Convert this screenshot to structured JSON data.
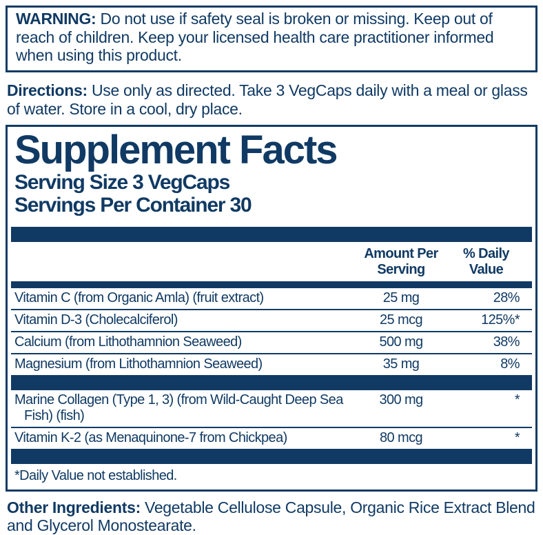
{
  "colors": {
    "navy": "#103a64",
    "background": "#ffffff"
  },
  "warning": {
    "label": "WARNING:",
    "text": "Do not use if safety seal is broken or missing. Keep out of reach of children. Keep your licensed health care practitioner informed when using this product."
  },
  "directions": {
    "label": "Directions:",
    "text": "Use only as directed. Take 3 VegCaps daily with a meal or glass of water. Store in a cool, dry place."
  },
  "supplement_facts": {
    "title": "Supplement Facts",
    "serving_size": "Serving Size 3 VegCaps",
    "servings_per_container": "Servings Per Container 30",
    "columns": {
      "amount": "Amount Per Serving",
      "daily_value": "% Daily Value"
    },
    "rows": [
      {
        "name": "Vitamin C (from Organic Amla) (fruit extract)",
        "amount": "25 mg",
        "dv": "28%"
      },
      {
        "name": "Vitamin D-3 (Cholecalciferol)",
        "amount": "25 mcg",
        "dv": "125%*"
      },
      {
        "name": "Calcium (from Lithothamnion Seaweed)",
        "amount": "500 mg",
        "dv": "38%"
      },
      {
        "name": "Magnesium (from Lithothamnion Seaweed)",
        "amount": "35 mg",
        "dv": "8%",
        "group_end": true
      },
      {
        "name": "Marine Collagen (Type 1, 3) (from Wild-Caught Deep Sea Fish) (fish)",
        "amount": "300 mg",
        "dv": "*"
      },
      {
        "name": "Vitamin K-2 (as Menaquinone-7 from Chickpea)",
        "amount": "80 mcg",
        "dv": "*",
        "group_end": true
      }
    ],
    "footnote": "*Daily Value not established."
  },
  "other_ingredients": {
    "label": "Other Ingredients:",
    "text": "Vegetable Cellulose Capsule, Organic Rice Extract Blend and Glycerol Monostearate."
  }
}
